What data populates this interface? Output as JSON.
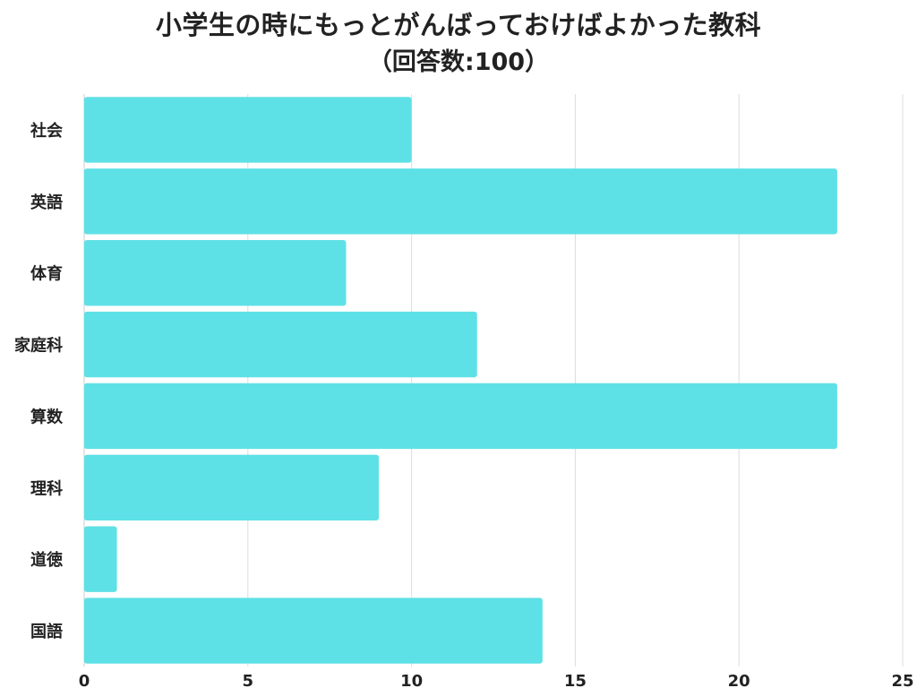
{
  "chart_data": {
    "type": "bar",
    "orientation": "horizontal",
    "title": "小学生の時にもっとがんばっておけばよかった教科",
    "subtitle": "（回答数:100）",
    "categories": [
      "社会",
      "英語",
      "体育",
      "家庭科",
      "算数",
      "理科",
      "道徳",
      "国語"
    ],
    "values": [
      10,
      23,
      8,
      12,
      23,
      9,
      1,
      14
    ],
    "xlim": [
      0,
      25
    ],
    "xticks": [
      0,
      5,
      10,
      15,
      20,
      25
    ],
    "xlabel": "",
    "ylabel": "",
    "grid": "vertical",
    "legend": "none",
    "bar_color": "#5ee1e6",
    "grid_color": "#dddddd"
  }
}
